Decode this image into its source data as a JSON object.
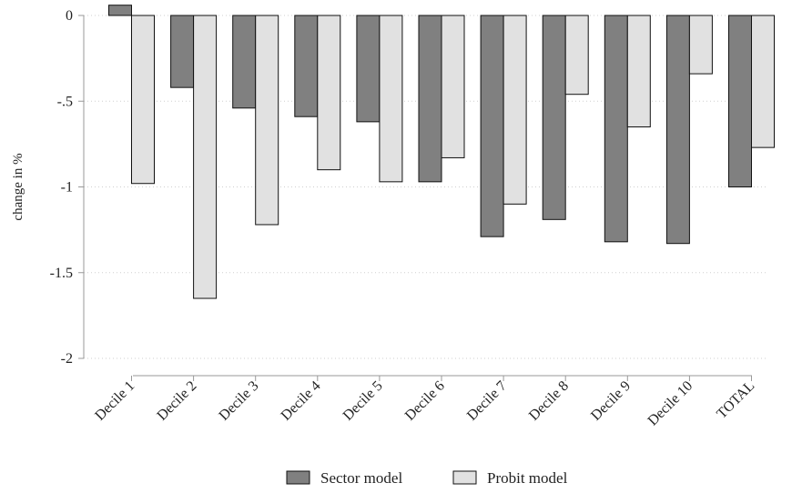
{
  "chart_data": {
    "type": "bar",
    "title": "",
    "xlabel": "",
    "ylabel": "change in %",
    "ylim": [
      -2,
      0
    ],
    "yticks": [
      0,
      -0.5,
      -1,
      -1.5,
      -2
    ],
    "ytick_labels": [
      "0",
      "-.5",
      "-1",
      "-1.5",
      "-2"
    ],
    "grid": "horizontal dotted",
    "legend_placement": "bottom-center",
    "categories": [
      "Decile 1",
      "Decile 2",
      "Decile 3",
      "Decile 4",
      "Decile 5",
      "Decile 6",
      "Decile 7",
      "Decile 8",
      "Decile 9",
      "Decile 10",
      "TOTAL"
    ],
    "series": [
      {
        "name": "Sector model",
        "color": "#808080",
        "values": [
          0.06,
          -0.42,
          -0.54,
          -0.59,
          -0.62,
          -0.97,
          -1.29,
          -1.19,
          -1.32,
          -1.33,
          -1.0
        ]
      },
      {
        "name": "Probit model",
        "color": "#e1e1e1",
        "values": [
          -0.98,
          -1.65,
          -1.22,
          -0.9,
          -0.97,
          -0.83,
          -1.1,
          -0.46,
          -0.65,
          -0.34,
          -0.77
        ]
      }
    ]
  }
}
